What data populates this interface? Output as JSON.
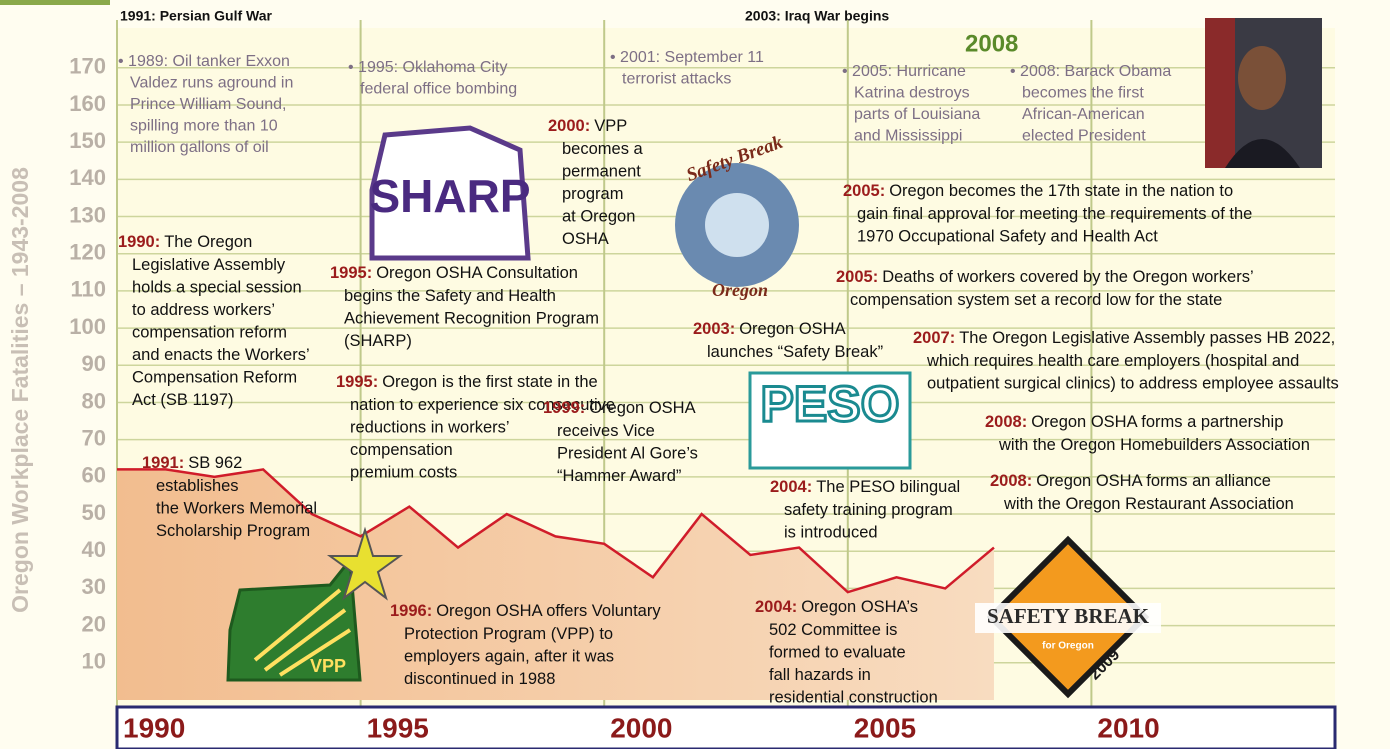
{
  "chart_data": {
    "type": "area",
    "y_title": "Oregon Workplace Fatalities – 1943-2008",
    "x": [
      1990,
      1991,
      1992,
      1993,
      1994,
      1995,
      1996,
      1997,
      1998,
      1999,
      2000,
      2001,
      2002,
      2003,
      2004,
      2005,
      2006,
      2007,
      2008
    ],
    "values": [
      62,
      62,
      60,
      62,
      50,
      44,
      52,
      41,
      50,
      44,
      42,
      33,
      50,
      39,
      41,
      29,
      33,
      30,
      41
    ],
    "color": "#d01c2a",
    "fill": "#f4c59b",
    "xlim": [
      1990,
      2015
    ],
    "xticks": [
      1990,
      1995,
      2000,
      2005,
      2010
    ],
    "ylim": [
      0,
      180
    ],
    "yticks": [
      10,
      20,
      30,
      40,
      50,
      60,
      70,
      80,
      90,
      100,
      110,
      120,
      130,
      140,
      150,
      160,
      170
    ],
    "grid": true,
    "headline_events": [
      "1991: Persian Gulf War",
      "2003: Iraq War begins"
    ],
    "highlight_year": "2008",
    "world_events": [
      [
        "• 1989: Oil tanker Exxon",
        "Valdez runs aground in",
        "Prince William Sound,",
        "spilling more than 10",
        "million gallons of oil"
      ],
      [
        "• 1995: Oklahoma City",
        "federal office bombing"
      ],
      [
        "• 2001: September 11",
        "terrorist attacks"
      ],
      [
        "• 2005: Hurricane",
        "Katrina destroys",
        "parts of Louisiana",
        "and Mississippi"
      ],
      [
        "• 2008: Barack Obama",
        "becomes the first",
        "African-American",
        "elected President"
      ]
    ],
    "annotations": [
      {
        "lead": "1990:",
        "lines": [
          "The Oregon",
          "Legislative Assembly",
          "holds a special session",
          "to address workers’",
          "compensation reform",
          "and enacts the Workers’",
          "Compensation Reform",
          "Act (SB 1197)"
        ]
      },
      {
        "lead": "1995:",
        "lines": [
          "Oregon OSHA Consultation",
          "begins the Safety and Health",
          "Achievement Recognition Program",
          "(SHARP)"
        ]
      },
      {
        "lead": "1995:",
        "lines": [
          "Oregon is the first state in the",
          "nation to experience six consecutive",
          "reductions in workers’",
          "compensation",
          "premium costs"
        ]
      },
      {
        "lead": "2000:",
        "lines": [
          "VPP",
          "becomes a",
          "permanent",
          "program",
          "at Oregon",
          "OSHA"
        ]
      },
      {
        "lead": "1999:",
        "lines": [
          "Oregon OSHA",
          "receives Vice",
          "President Al Gore’s",
          "“Hammer Award”"
        ]
      },
      {
        "lead": "1991:",
        "lines": [
          "SB 962",
          "establishes",
          "the Workers Memorial",
          "Scholarship Program"
        ]
      },
      {
        "lead": "1996:",
        "lines": [
          "Oregon OSHA offers Voluntary",
          "Protection Program (VPP) to",
          "employers again, after it was",
          "discontinued in 1988"
        ]
      },
      {
        "lead": "2003:",
        "lines": [
          "Oregon OSHA",
          "launches “Safety Break”"
        ]
      },
      {
        "lead": "2004:",
        "lines": [
          "The PESO bilingual",
          "safety training program",
          "is introduced"
        ]
      },
      {
        "lead": "2004:",
        "lines": [
          "Oregon OSHA’s",
          "502 Committee is",
          "formed to evaluate",
          "fall hazards in",
          "residential construction"
        ]
      },
      {
        "lead": "2005:",
        "lines": [
          "Oregon becomes the 17th state in the nation to",
          "gain final approval for meeting the requirements of the",
          "1970 Occupational Safety and Health Act"
        ]
      },
      {
        "lead": "2005:",
        "lines": [
          "Deaths of workers covered by the Oregon workers’",
          "compensation system set a record low for the state"
        ]
      },
      {
        "lead": "2007:",
        "lines": [
          "The Oregon Legislative Assembly passes HB 2022,",
          "which requires health care employers (hospital and",
          "outpatient surgical clinics) to address employee assaults"
        ]
      },
      {
        "lead": "2008:",
        "lines": [
          "Oregon OSHA forms a partnership",
          "with the Oregon Homebuilders Association"
        ]
      },
      {
        "lead": "2008:",
        "lines": [
          "Oregon OSHA forms an alliance",
          "with the Oregon Restaurant Association"
        ]
      }
    ],
    "logos": {
      "sharp": "SHARP",
      "safety_break": "Safety Break",
      "oregon": "Oregon",
      "peso": "PESO",
      "vpp": "VPP",
      "sb_sign": "SAFETY BREAK",
      "sb_sub": "for Oregon",
      "sb_year": "2009"
    }
  }
}
